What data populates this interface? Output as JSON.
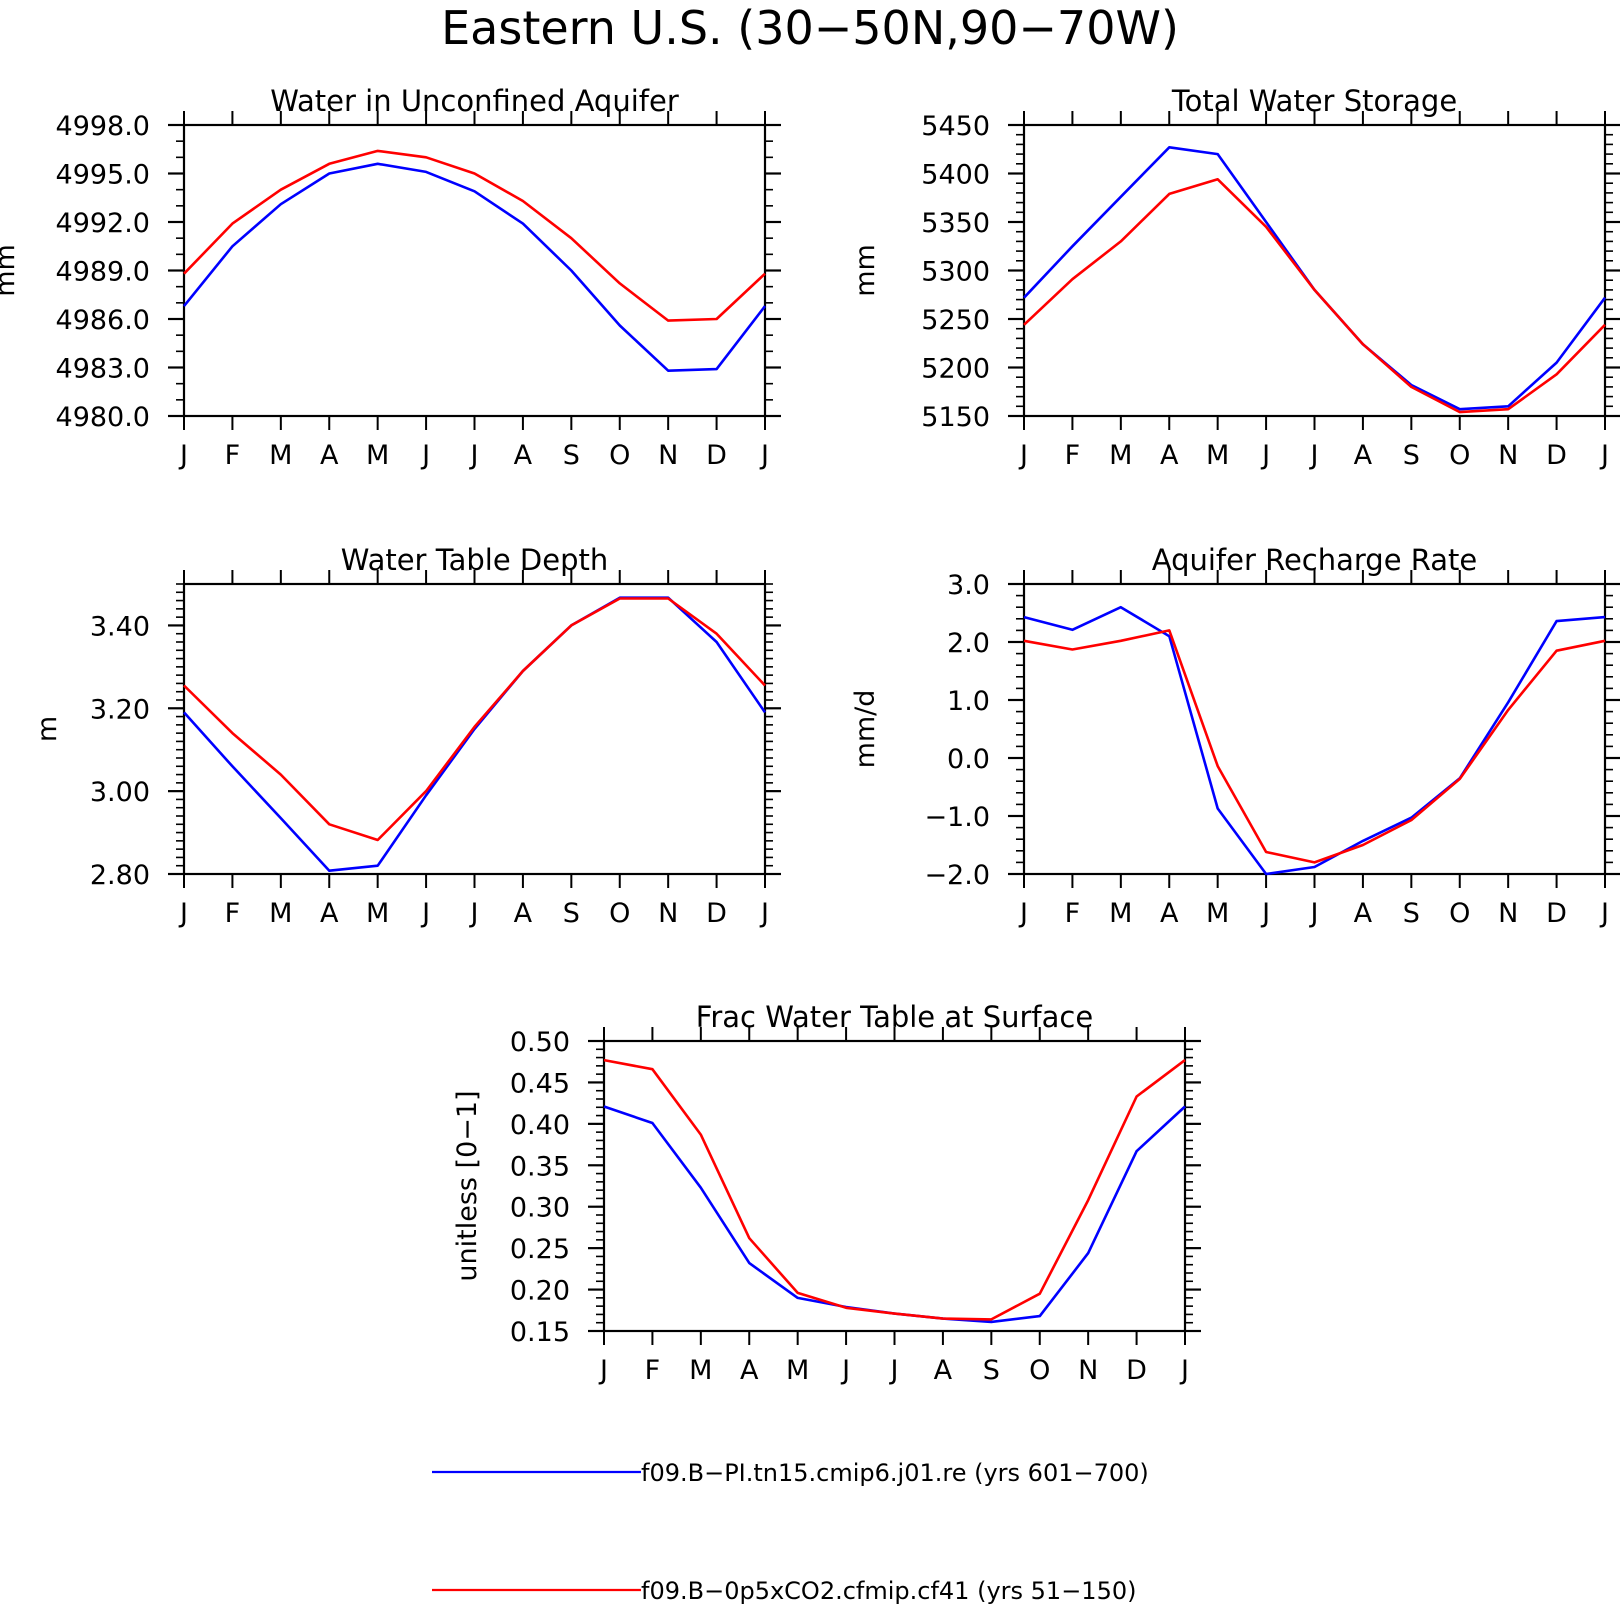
{
  "figure": {
    "title": "Eastern U.S. (30−50N,90−70W)"
  },
  "legend": [
    {
      "label": "f09.B−PI.tn15.cmip6.j01.re (yrs 601−700)",
      "color": "#0000ff"
    },
    {
      "label": "f09.B−0p5xCO2.cfmip.cf41 (yrs 51−150)",
      "color": "#ff0000"
    }
  ],
  "chart_data": [
    {
      "type": "line",
      "title": "Water in Unconfined Aquifer",
      "ylabel": "mm",
      "ylim": [
        4980,
        4998
      ],
      "yticks": [
        4980,
        4983,
        4986,
        4989,
        4992,
        4995,
        4998
      ],
      "ytick_labels": [
        "4980.0",
        "4983.0",
        "4986.0",
        "4989.0",
        "4992.0",
        "4995.0",
        "4998.0"
      ],
      "yminor": 1,
      "categories": [
        "J",
        "F",
        "M",
        "A",
        "M",
        "J",
        "J",
        "A",
        "S",
        "O",
        "N",
        "D",
        "J"
      ],
      "series": [
        {
          "color": "#0000ff",
          "values": [
            4986.8,
            4990.5,
            4993.1,
            4995.0,
            4995.6,
            4995.1,
            4993.9,
            4991.9,
            4989.0,
            4985.6,
            4982.8,
            4982.9,
            4986.8
          ]
        },
        {
          "color": "#ff0000",
          "values": [
            4988.8,
            4991.9,
            4994.0,
            4995.6,
            4996.4,
            4996.0,
            4995.0,
            4993.3,
            4991.0,
            4988.2,
            4985.9,
            4986.0,
            4988.8
          ]
        }
      ]
    },
    {
      "type": "line",
      "title": "Total Water Storage",
      "ylabel": "mm",
      "ylim": [
        5150,
        5450
      ],
      "yticks": [
        5150,
        5200,
        5250,
        5300,
        5350,
        5400,
        5450
      ],
      "ytick_labels": [
        "5150",
        "5200",
        "5250",
        "5300",
        "5350",
        "5400",
        "5450"
      ],
      "yminor": 10,
      "categories": [
        "J",
        "F",
        "M",
        "A",
        "M",
        "J",
        "J",
        "A",
        "S",
        "O",
        "N",
        "D",
        "J"
      ],
      "series": [
        {
          "color": "#0000ff",
          "values": [
            5272,
            5325,
            5376,
            5427,
            5420,
            5350,
            5280,
            5224,
            5182,
            5157,
            5160,
            5205,
            5272
          ]
        },
        {
          "color": "#ff0000",
          "values": [
            5244,
            5291,
            5330,
            5379,
            5394,
            5345,
            5280,
            5224,
            5180,
            5154,
            5157,
            5193,
            5244
          ]
        }
      ]
    },
    {
      "type": "line",
      "title": "Water Table Depth",
      "ylabel": "m",
      "ylim": [
        2.8,
        3.5
      ],
      "yticks": [
        2.8,
        3.0,
        3.2,
        3.4
      ],
      "ytick_labels": [
        "2.80",
        "3.00",
        "3.20",
        "3.40"
      ],
      "yminor": 0.02,
      "categories": [
        "J",
        "F",
        "M",
        "A",
        "M",
        "J",
        "J",
        "A",
        "S",
        "O",
        "N",
        "D",
        "J"
      ],
      "series": [
        {
          "color": "#0000ff",
          "values": [
            3.19,
            3.06,
            2.935,
            2.808,
            2.82,
            2.99,
            3.15,
            3.29,
            3.4,
            3.467,
            3.467,
            3.36,
            3.19
          ]
        },
        {
          "color": "#ff0000",
          "values": [
            3.255,
            3.14,
            3.04,
            2.92,
            2.882,
            3.0,
            3.155,
            3.29,
            3.4,
            3.465,
            3.465,
            3.38,
            3.255
          ]
        }
      ]
    },
    {
      "type": "line",
      "title": "Aquifer Recharge Rate",
      "ylabel": "mm/d",
      "ylim": [
        -2.0,
        3.0
      ],
      "yticks": [
        -2.0,
        -1.0,
        0.0,
        1.0,
        2.0,
        3.0
      ],
      "ytick_labels": [
        "−2.0",
        "−1.0",
        "0.0",
        "1.0",
        "2.0",
        "3.0"
      ],
      "yminor": 0.2,
      "categories": [
        "J",
        "F",
        "M",
        "A",
        "M",
        "J",
        "J",
        "A",
        "S",
        "O",
        "N",
        "D",
        "J"
      ],
      "series": [
        {
          "color": "#0000ff",
          "values": [
            2.43,
            2.21,
            2.6,
            2.1,
            -0.87,
            -2.0,
            -1.88,
            -1.43,
            -1.03,
            -0.35,
            0.96,
            2.36,
            2.43
          ]
        },
        {
          "color": "#ff0000",
          "values": [
            2.02,
            1.87,
            2.02,
            2.2,
            -0.14,
            -1.62,
            -1.8,
            -1.5,
            -1.07,
            -0.36,
            0.83,
            1.85,
            2.02
          ]
        }
      ]
    },
    {
      "type": "line",
      "title": "Frac Water Table at Surface",
      "ylabel": "unitless [0−1]",
      "ylim": [
        0.15,
        0.5
      ],
      "yticks": [
        0.15,
        0.2,
        0.25,
        0.3,
        0.35,
        0.4,
        0.45,
        0.5
      ],
      "ytick_labels": [
        "0.15",
        "0.20",
        "0.25",
        "0.30",
        "0.35",
        "0.40",
        "0.45",
        "0.50"
      ],
      "yminor": 0.01,
      "categories": [
        "J",
        "F",
        "M",
        "A",
        "M",
        "J",
        "J",
        "A",
        "S",
        "O",
        "N",
        "D",
        "J"
      ],
      "series": [
        {
          "color": "#0000ff",
          "values": [
            0.421,
            0.401,
            0.323,
            0.232,
            0.19,
            0.179,
            0.171,
            0.165,
            0.161,
            0.168,
            0.244,
            0.367,
            0.421
          ]
        },
        {
          "color": "#ff0000",
          "values": [
            0.477,
            0.466,
            0.387,
            0.262,
            0.196,
            0.178,
            0.171,
            0.165,
            0.164,
            0.195,
            0.308,
            0.433,
            0.477
          ]
        }
      ]
    }
  ]
}
